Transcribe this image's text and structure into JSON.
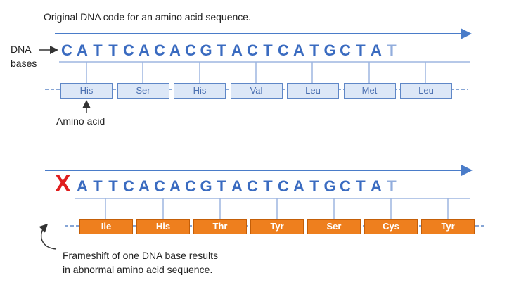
{
  "title": "Original DNA code for an amino acid sequence.",
  "dna_label": [
    "DNA",
    "bases"
  ],
  "amino_label": "Amino acid",
  "original": {
    "bases": [
      "C",
      "A",
      "T",
      "T",
      "C",
      "A",
      "C",
      "A",
      "C",
      "G",
      "T",
      "A",
      "C",
      "T",
      "C",
      "A",
      "T",
      "G",
      "C",
      "T",
      "A",
      "T"
    ],
    "amino_acids": [
      "His",
      "Ser",
      "His",
      "Val",
      "Leu",
      "Met",
      "Leu"
    ]
  },
  "mutated": {
    "deleted_base": "X",
    "bases": [
      "A",
      "T",
      "T",
      "C",
      "A",
      "C",
      "A",
      "C",
      "G",
      "T",
      "A",
      "C",
      "T",
      "C",
      "A",
      "T",
      "G",
      "C",
      "T",
      "A",
      "T"
    ],
    "amino_acids": [
      "Ile",
      "His",
      "Thr",
      "Tyr",
      "Ser",
      "Cys",
      "Tyr"
    ]
  },
  "frameshift_label": [
    "Frameshift of one DNA base results",
    "in abnormal amino acid sequence."
  ],
  "colors": {
    "dna_blue": "#3a6bc0",
    "line_blue": "#4a7cc9",
    "aa_fill_original": "#dce7f7",
    "aa_fill_mutated": "#ee7f1e",
    "deletion_mark": "#e01e1e"
  }
}
